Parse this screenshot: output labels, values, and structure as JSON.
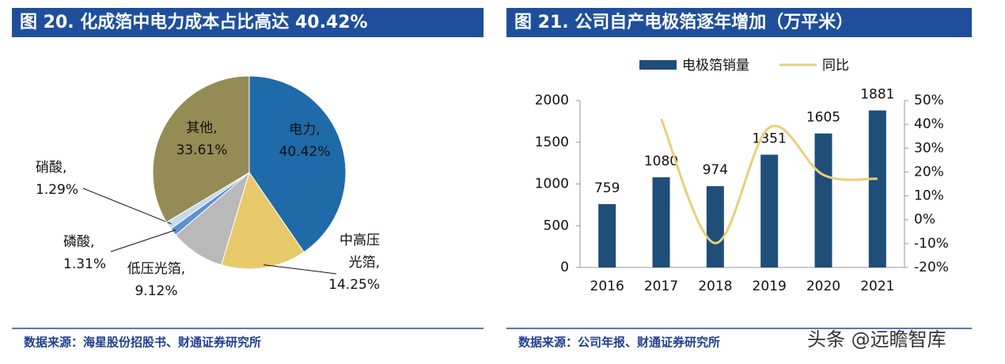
{
  "chart_data": [
    {
      "type": "pie",
      "title": "图 20. 化成箔中电力成本占比高达 40.42%",
      "categories": [
        "电力,",
        "中高压\n光箔,",
        "低压光箔,",
        "磷酸,",
        "硝酸,",
        "其他,"
      ],
      "values": [
        40.42,
        14.25,
        9.12,
        1.31,
        1.29,
        33.61
      ],
      "value_labels": [
        "40.42%",
        "14.25%",
        "9.12%",
        "1.31%",
        "1.29%",
        "33.61%"
      ],
      "colors": [
        "#1f6aa8",
        "#e8c96a",
        "#b9b9b9",
        "#5f90d2",
        "#c8d8ec",
        "#958b55"
      ],
      "source": "数据来源：海星股份招股书、财通证券研究所"
    },
    {
      "type": "bar-line",
      "title": "图 21. 公司自产电极箔逐年增加（万平米）",
      "categories": [
        "2016",
        "2017",
        "2018",
        "2019",
        "2020",
        "2021"
      ],
      "series": [
        {
          "name": "电极箔销量",
          "color": "#1f4e79",
          "values": [
            759,
            1080,
            974,
            1351,
            1605,
            1881
          ]
        },
        {
          "name": "同比",
          "color": "#e8cf7a",
          "axis": "y2",
          "values": [
            null,
            42.3,
            -9.8,
            38.7,
            18.8,
            17.2
          ]
        }
      ],
      "ylim": [
        0,
        2000
      ],
      "yticks": [
        0,
        500,
        1000,
        1500,
        2000
      ],
      "y2lim": [
        -20,
        50
      ],
      "y2ticks": [
        {
          "value": -20,
          "label": "-20%"
        },
        {
          "value": -10,
          "label": "-10%"
        },
        {
          "value": 0,
          "label": "0%"
        },
        {
          "value": 10,
          "label": "10%"
        },
        {
          "value": 20,
          "label": "20%"
        },
        {
          "value": 30,
          "label": "30%"
        },
        {
          "value": 40,
          "label": "40%"
        },
        {
          "value": 50,
          "label": "50%"
        }
      ],
      "source": "数据来源：公司年报、财通证券研究所"
    }
  ],
  "watermark": "头条 @远瞻智库"
}
